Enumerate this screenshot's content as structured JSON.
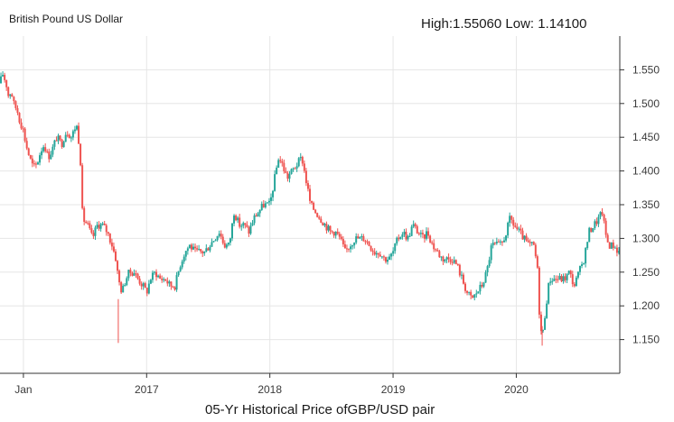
{
  "chart_data": {
    "type": "candlestick",
    "title": "British Pound US Dollar",
    "high_low_text": "High:1.55060 Low: 1.14100",
    "caption": "05-Yr Historical Price ofGBP/USD pair",
    "xlabel": "",
    "ylabel": "",
    "ylim": [
      1.1,
      1.6
    ],
    "y_ticks": [
      "1.150",
      "1.200",
      "1.250",
      "1.300",
      "1.350",
      "1.400",
      "1.450",
      "1.500",
      "1.550"
    ],
    "x_ticks": [
      {
        "label": "Jan",
        "t": 2016.0
      },
      {
        "label": "2017",
        "t": 2017.0
      },
      {
        "label": "2018",
        "t": 2018.0
      },
      {
        "label": "2019",
        "t": 2019.0
      },
      {
        "label": "2020",
        "t": 2020.0
      }
    ],
    "x_range": [
      2015.81,
      2020.84
    ],
    "colors": {
      "up": "#26a69a",
      "down": "#ef5350",
      "grid": "#e6e6e6",
      "axis": "#333333"
    },
    "series": [
      {
        "name": "GBP/USD close (approx.)",
        "points": [
          [
            2015.81,
            1.53
          ],
          [
            2015.83,
            1.545
          ],
          [
            2015.86,
            1.53
          ],
          [
            2015.88,
            1.51
          ],
          [
            2015.9,
            1.52
          ],
          [
            2015.92,
            1.5
          ],
          [
            2015.95,
            1.49
          ],
          [
            2015.97,
            1.475
          ],
          [
            2016.0,
            1.46
          ],
          [
            2016.02,
            1.44
          ],
          [
            2016.05,
            1.42
          ],
          [
            2016.08,
            1.405
          ],
          [
            2016.11,
            1.41
          ],
          [
            2016.14,
            1.43
          ],
          [
            2016.17,
            1.44
          ],
          [
            2016.2,
            1.42
          ],
          [
            2016.23,
            1.43
          ],
          [
            2016.27,
            1.45
          ],
          [
            2016.31,
            1.44
          ],
          [
            2016.35,
            1.46
          ],
          [
            2016.39,
            1.45
          ],
          [
            2016.43,
            1.47
          ],
          [
            2016.46,
            1.43
          ],
          [
            2016.48,
            1.33
          ],
          [
            2016.52,
            1.32
          ],
          [
            2016.56,
            1.3
          ],
          [
            2016.6,
            1.32
          ],
          [
            2016.64,
            1.32
          ],
          [
            2016.68,
            1.31
          ],
          [
            2016.72,
            1.29
          ],
          [
            2016.75,
            1.27
          ],
          [
            2016.77,
            1.24
          ],
          [
            2016.8,
            1.22
          ],
          [
            2016.83,
            1.24
          ],
          [
            2016.86,
            1.25
          ],
          [
            2016.9,
            1.25
          ],
          [
            2016.93,
            1.24
          ],
          [
            2016.97,
            1.23
          ],
          [
            2017.0,
            1.22
          ],
          [
            2017.03,
            1.24
          ],
          [
            2017.07,
            1.25
          ],
          [
            2017.11,
            1.24
          ],
          [
            2017.15,
            1.24
          ],
          [
            2017.19,
            1.23
          ],
          [
            2017.23,
            1.23
          ],
          [
            2017.27,
            1.26
          ],
          [
            2017.31,
            1.28
          ],
          [
            2017.35,
            1.29
          ],
          [
            2017.39,
            1.28
          ],
          [
            2017.43,
            1.28
          ],
          [
            2017.47,
            1.28
          ],
          [
            2017.51,
            1.29
          ],
          [
            2017.55,
            1.3
          ],
          [
            2017.59,
            1.31
          ],
          [
            2017.63,
            1.29
          ],
          [
            2017.67,
            1.29
          ],
          [
            2017.71,
            1.34
          ],
          [
            2017.75,
            1.32
          ],
          [
            2017.79,
            1.32
          ],
          [
            2017.83,
            1.31
          ],
          [
            2017.87,
            1.33
          ],
          [
            2017.91,
            1.34
          ],
          [
            2017.95,
            1.35
          ],
          [
            2018.0,
            1.35
          ],
          [
            2018.03,
            1.38
          ],
          [
            2018.07,
            1.42
          ],
          [
            2018.1,
            1.41
          ],
          [
            2018.14,
            1.39
          ],
          [
            2018.18,
            1.4
          ],
          [
            2018.22,
            1.41
          ],
          [
            2018.26,
            1.42
          ],
          [
            2018.29,
            1.39
          ],
          [
            2018.33,
            1.35
          ],
          [
            2018.37,
            1.34
          ],
          [
            2018.41,
            1.33
          ],
          [
            2018.45,
            1.32
          ],
          [
            2018.49,
            1.31
          ],
          [
            2018.53,
            1.31
          ],
          [
            2018.57,
            1.3
          ],
          [
            2018.61,
            1.28
          ],
          [
            2018.65,
            1.29
          ],
          [
            2018.69,
            1.3
          ],
          [
            2018.73,
            1.3
          ],
          [
            2018.77,
            1.3
          ],
          [
            2018.81,
            1.29
          ],
          [
            2018.85,
            1.28
          ],
          [
            2018.89,
            1.28
          ],
          [
            2018.93,
            1.27
          ],
          [
            2018.97,
            1.27
          ],
          [
            2019.0,
            1.28
          ],
          [
            2019.04,
            1.3
          ],
          [
            2019.08,
            1.31
          ],
          [
            2019.12,
            1.3
          ],
          [
            2019.16,
            1.32
          ],
          [
            2019.2,
            1.31
          ],
          [
            2019.24,
            1.3
          ],
          [
            2019.28,
            1.31
          ],
          [
            2019.32,
            1.29
          ],
          [
            2019.36,
            1.28
          ],
          [
            2019.4,
            1.27
          ],
          [
            2019.44,
            1.27
          ],
          [
            2019.48,
            1.27
          ],
          [
            2019.52,
            1.26
          ],
          [
            2019.56,
            1.24
          ],
          [
            2019.6,
            1.22
          ],
          [
            2019.64,
            1.21
          ],
          [
            2019.68,
            1.22
          ],
          [
            2019.72,
            1.23
          ],
          [
            2019.76,
            1.25
          ],
          [
            2019.8,
            1.29
          ],
          [
            2019.84,
            1.29
          ],
          [
            2019.88,
            1.29
          ],
          [
            2019.92,
            1.31
          ],
          [
            2019.95,
            1.33
          ],
          [
            2019.98,
            1.32
          ],
          [
            2020.02,
            1.31
          ],
          [
            2020.06,
            1.3
          ],
          [
            2020.1,
            1.29
          ],
          [
            2020.14,
            1.29
          ],
          [
            2020.17,
            1.26
          ],
          [
            2020.19,
            1.18
          ],
          [
            2020.21,
            1.15
          ],
          [
            2020.24,
            1.2
          ],
          [
            2020.27,
            1.24
          ],
          [
            2020.31,
            1.24
          ],
          [
            2020.35,
            1.24
          ],
          [
            2020.39,
            1.24
          ],
          [
            2020.43,
            1.25
          ],
          [
            2020.47,
            1.23
          ],
          [
            2020.51,
            1.25
          ],
          [
            2020.55,
            1.27
          ],
          [
            2020.59,
            1.31
          ],
          [
            2020.63,
            1.32
          ],
          [
            2020.67,
            1.33
          ],
          [
            2020.7,
            1.34
          ],
          [
            2020.72,
            1.31
          ],
          [
            2020.75,
            1.29
          ],
          [
            2020.79,
            1.29
          ],
          [
            2020.83,
            1.28
          ]
        ]
      }
    ]
  }
}
